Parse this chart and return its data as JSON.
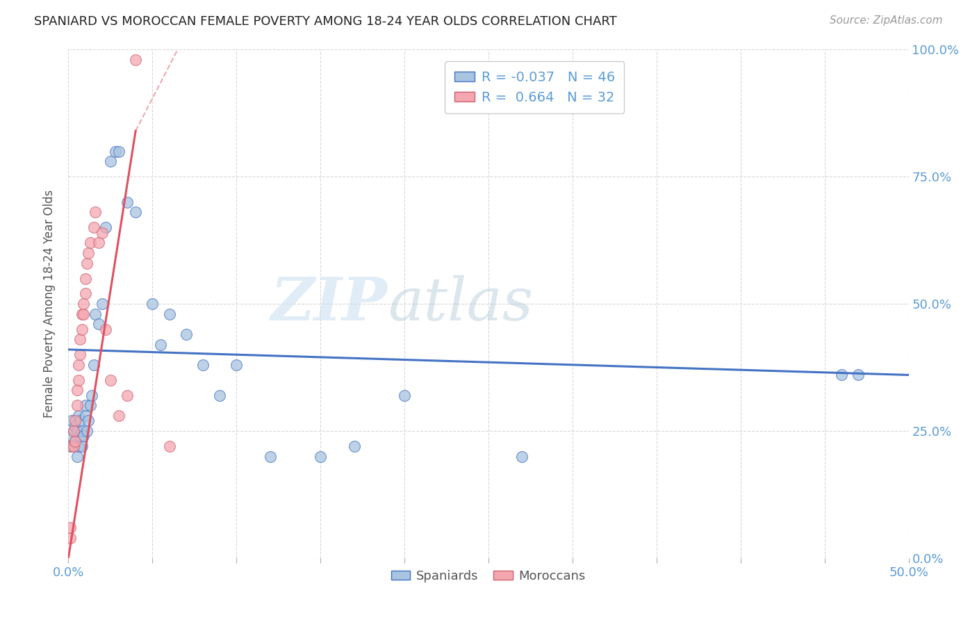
{
  "title": "SPANIARD VS MOROCCAN FEMALE POVERTY AMONG 18-24 YEAR OLDS CORRELATION CHART",
  "source": "Source: ZipAtlas.com",
  "ylabel": "Female Poverty Among 18-24 Year Olds",
  "ytick_labels": [
    "0.0%",
    "25.0%",
    "50.0%",
    "75.0%",
    "100.0%"
  ],
  "ytick_values": [
    0,
    0.25,
    0.5,
    0.75,
    1.0
  ],
  "xlim": [
    0.0,
    0.5
  ],
  "ylim": [
    0.0,
    1.0
  ],
  "legend_r1": "R = -0.037   N = 46",
  "legend_r2": "R =  0.664   N = 32",
  "watermark_zip": "ZIP",
  "watermark_atlas": "atlas",
  "spaniard_color": "#a8c4e0",
  "moroccan_color": "#f4a7b0",
  "trendline_spaniard_color": "#4472c4",
  "trendline_moroccan_color": "#e05060",
  "grid_color": "#d8d8d8",
  "axis_label_color": "#5b9bd5",
  "title_color": "#222222",
  "spaniards_x": [
    0.001,
    0.002,
    0.002,
    0.003,
    0.003,
    0.004,
    0.004,
    0.005,
    0.005,
    0.006,
    0.006,
    0.007,
    0.007,
    0.008,
    0.008,
    0.009,
    0.01,
    0.01,
    0.011,
    0.012,
    0.013,
    0.014,
    0.015,
    0.016,
    0.018,
    0.02,
    0.022,
    0.025,
    0.028,
    0.03,
    0.035,
    0.04,
    0.05,
    0.055,
    0.06,
    0.07,
    0.08,
    0.09,
    0.1,
    0.12,
    0.15,
    0.17,
    0.2,
    0.27,
    0.46,
    0.47
  ],
  "spaniards_y": [
    0.22,
    0.24,
    0.27,
    0.22,
    0.25,
    0.23,
    0.26,
    0.2,
    0.25,
    0.22,
    0.28,
    0.24,
    0.27,
    0.22,
    0.25,
    0.24,
    0.28,
    0.3,
    0.25,
    0.27,
    0.3,
    0.32,
    0.38,
    0.48,
    0.46,
    0.5,
    0.65,
    0.78,
    0.8,
    0.8,
    0.7,
    0.68,
    0.5,
    0.42,
    0.48,
    0.44,
    0.38,
    0.32,
    0.38,
    0.2,
    0.2,
    0.22,
    0.32,
    0.2,
    0.36,
    0.36
  ],
  "moroccans_x": [
    0.001,
    0.001,
    0.002,
    0.003,
    0.003,
    0.004,
    0.004,
    0.005,
    0.005,
    0.006,
    0.006,
    0.007,
    0.007,
    0.008,
    0.008,
    0.009,
    0.009,
    0.01,
    0.01,
    0.011,
    0.012,
    0.013,
    0.015,
    0.016,
    0.018,
    0.02,
    0.022,
    0.025,
    0.03,
    0.035,
    0.04,
    0.06
  ],
  "moroccans_y": [
    0.04,
    0.06,
    0.22,
    0.22,
    0.25,
    0.23,
    0.27,
    0.3,
    0.33,
    0.35,
    0.38,
    0.4,
    0.43,
    0.45,
    0.48,
    0.48,
    0.5,
    0.52,
    0.55,
    0.58,
    0.6,
    0.62,
    0.65,
    0.68,
    0.62,
    0.64,
    0.45,
    0.35,
    0.28,
    0.32,
    0.98,
    0.22
  ],
  "trendline_spaniard_x0": 0.0,
  "trendline_spaniard_y0": 0.41,
  "trendline_spaniard_x1": 0.5,
  "trendline_spaniard_y1": 0.36,
  "trendline_moroccan_solid_x0": 0.0,
  "trendline_moroccan_solid_y0": 0.0,
  "trendline_moroccan_solid_x1": 0.04,
  "trendline_moroccan_solid_y1": 0.84,
  "trendline_moroccan_dash_x0": 0.04,
  "trendline_moroccan_dash_y0": 0.84,
  "trendline_moroccan_dash_x1": 0.065,
  "trendline_moroccan_dash_y1": 1.0
}
